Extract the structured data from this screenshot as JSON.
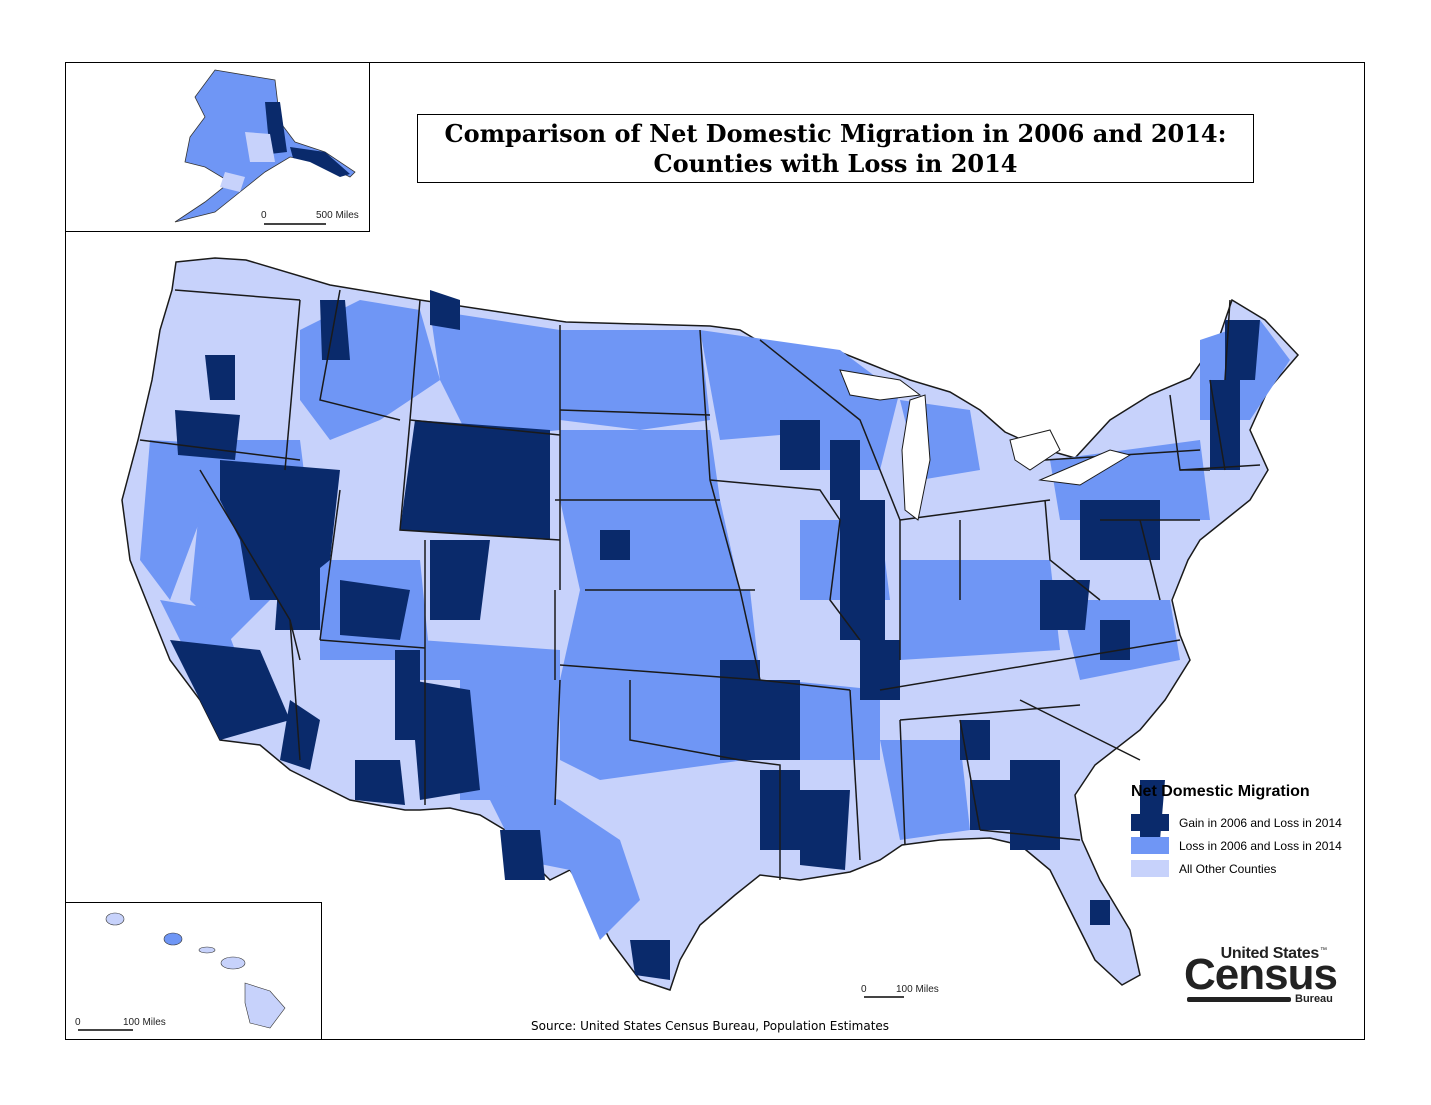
{
  "title": {
    "line1": "Comparison of Net Domestic Migration in 2006 and 2014:",
    "line2": "Counties with Loss in 2014"
  },
  "legend": {
    "title": "Net Domestic Migration",
    "items": [
      {
        "label": "Gain in 2006 and Loss in 2014",
        "color": "#0a2a6b"
      },
      {
        "label": "Loss in 2006 and Loss in 2014",
        "color": "#6f96f5"
      },
      {
        "label": "All Other Counties",
        "color": "#c7d2fb"
      }
    ]
  },
  "scale_bars": {
    "alaska": {
      "zero": "0",
      "distance": "500 Miles"
    },
    "hawaii": {
      "zero": "0",
      "distance": "100 Miles"
    },
    "conus": {
      "zero": "0",
      "distance": "100 Miles"
    }
  },
  "source": "Source: United States Census Bureau, Population Estimates",
  "logo": {
    "top": "United States",
    "tm": "™",
    "main": "Census",
    "bottom": "Bureau"
  },
  "colors": {
    "gain_loss": "#0a2a6b",
    "loss_loss": "#6f96f5",
    "other": "#c7d2fb",
    "border": "#1a1a1a"
  }
}
